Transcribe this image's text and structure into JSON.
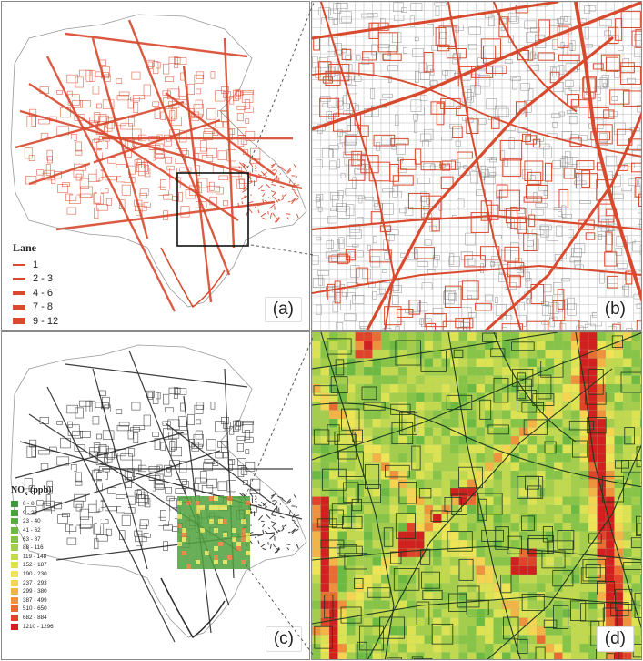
{
  "panels": {
    "a": {
      "label": "(a)"
    },
    "b": {
      "label": "(b)"
    },
    "c": {
      "label": "(c)"
    },
    "d": {
      "label": "(d)"
    }
  },
  "lane_legend": {
    "title": "Lane",
    "items": [
      "1",
      "2 - 3",
      "4 - 6",
      "7 - 8",
      "9 - 12"
    ]
  },
  "nox_legend": {
    "title_main": "NO",
    "title_sub": "x",
    "title_unit": " (ppb)",
    "items": [
      {
        "label": "0 - 8",
        "color": "#3c9a3a"
      },
      {
        "label": "9 - 22",
        "color": "#48a53c"
      },
      {
        "label": "23 - 40",
        "color": "#58ae3e"
      },
      {
        "label": "41 - 62",
        "color": "#6db942"
      },
      {
        "label": "63 - 87",
        "color": "#86c346"
      },
      {
        "label": "88 - 116",
        "color": "#a3cd4a"
      },
      {
        "label": "119 - 148",
        "color": "#c2d84e"
      },
      {
        "label": "152 - 187",
        "color": "#dde252"
      },
      {
        "label": "190 - 230",
        "color": "#eee456"
      },
      {
        "label": "237 - 293",
        "color": "#f4d452"
      },
      {
        "label": "299 - 380",
        "color": "#f2b447"
      },
      {
        "label": "387 - 499",
        "color": "#ee923d"
      },
      {
        "label": "510 - 650",
        "color": "#e86d33"
      },
      {
        "label": "682 - 884",
        "color": "#df432a"
      },
      {
        "label": "1210 - 1296",
        "color": "#d02020"
      }
    ]
  },
  "colors": {
    "road": "#d84a2e",
    "road_dark": "#2a2a2a",
    "grid": "#b8b8b8",
    "grid_green": "#9ccf8f"
  }
}
